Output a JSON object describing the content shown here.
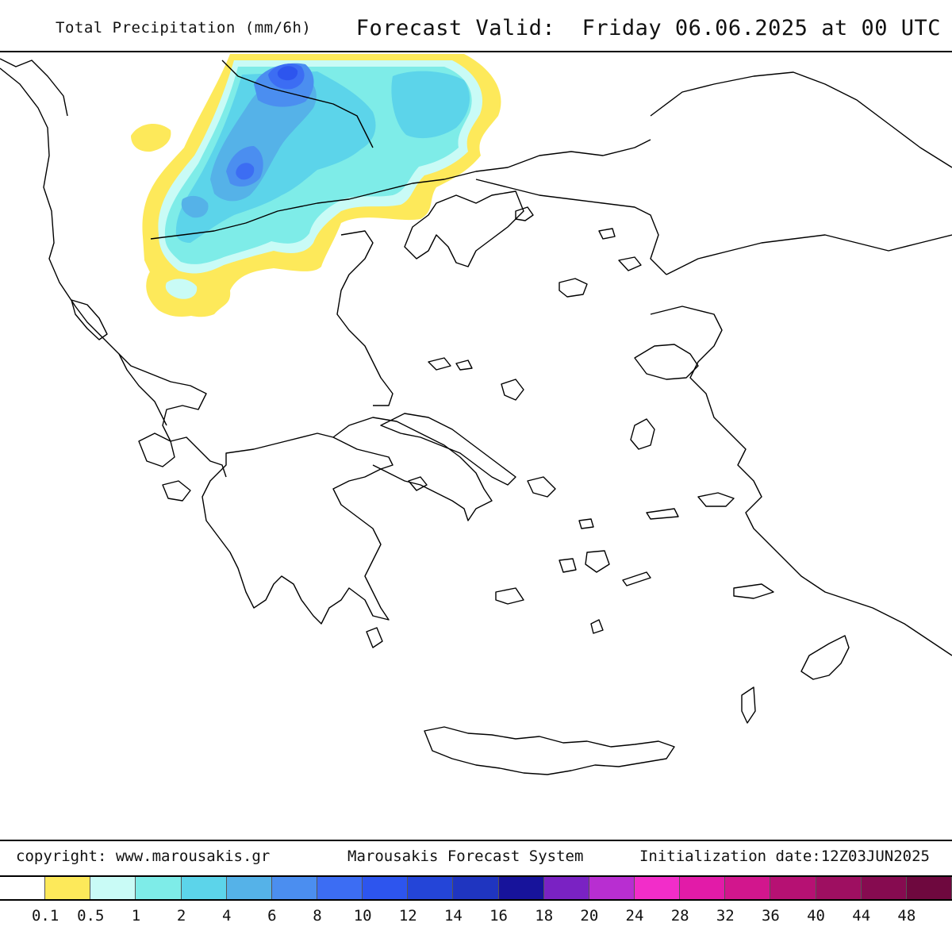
{
  "header": {
    "title": "Total Precipitation (mm/6h)",
    "valid": "Forecast Valid:  Friday 06.06.2025 at 00 UTC"
  },
  "footer": {
    "copyright": "copyright: www.marousakis.gr",
    "system": "Marousakis Forecast System",
    "init": "Initialization date:12Z03JUN2025"
  },
  "scale": {
    "colors": [
      "#ffffff",
      "#fde95a",
      "#c9fbf6",
      "#7eece8",
      "#5cd4ea",
      "#55b2e8",
      "#4b8ef0",
      "#3c6df3",
      "#2d55ee",
      "#2445d8",
      "#1f35c0",
      "#17139b",
      "#7a22c3",
      "#b82ed1",
      "#f22dc9",
      "#e21ba8",
      "#d2168d",
      "#b61173",
      "#9e0f61",
      "#860b50",
      "#6e083e"
    ],
    "labels": [
      "0.1",
      "0.5",
      "1",
      "2",
      "4",
      "6",
      "8",
      "10",
      "12",
      "14",
      "16",
      "18",
      "20",
      "24",
      "28",
      "32",
      "36",
      "40",
      "44",
      "48"
    ]
  }
}
